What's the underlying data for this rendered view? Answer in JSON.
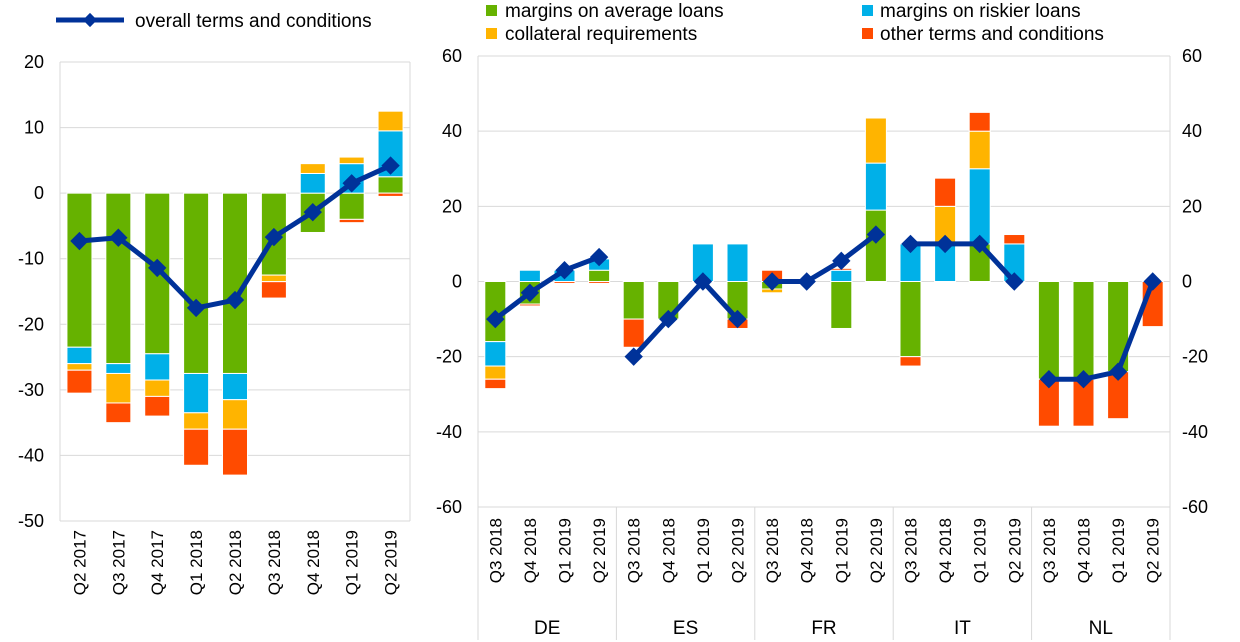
{
  "legend": {
    "overall": "overall terms and conditions",
    "margins_avg": "margins on average loans",
    "margins_risky": "margins on riskier loans",
    "collateral": "collateral requirements",
    "other": "other terms and conditions"
  },
  "colors": {
    "margins_avg": "#66b200",
    "margins_risky": "#00b0e8",
    "collateral": "#ffb400",
    "other": "#ff4b00",
    "line": "#003299",
    "grid": "#d9d9d9"
  },
  "chart_data": [
    {
      "type": "bar",
      "stacked": true,
      "overlay": "line",
      "categories": [
        "Q2 2017",
        "Q3 2017",
        "Q4 2017",
        "Q1 2018",
        "Q2 2018",
        "Q3 2018",
        "Q4 2018",
        "Q1 2019",
        "Q2 2019"
      ],
      "ylim": [
        -50,
        20
      ],
      "yticks": [
        20,
        10,
        0,
        -10,
        -20,
        -30,
        -40,
        -50
      ],
      "grid": true,
      "legend_position": "top-left",
      "series": [
        {
          "key": "margins_avg",
          "name": "margins on average loans",
          "values": [
            -23.5,
            -26,
            -24.5,
            -27.5,
            -27.5,
            -12.5,
            -6,
            -4,
            2.5
          ]
        },
        {
          "key": "margins_risky",
          "name": "margins on riskier loans",
          "values": [
            -2.5,
            -1.5,
            -4,
            -6,
            -4,
            0,
            3,
            4.5,
            7
          ]
        },
        {
          "key": "collateral",
          "name": "collateral requirements",
          "values": [
            -1,
            -4.5,
            -2.5,
            -2.5,
            -4.5,
            -1,
            1.5,
            1,
            3
          ]
        },
        {
          "key": "other",
          "name": "other terms and conditions",
          "values": [
            -3.5,
            -3,
            -3,
            -5.5,
            -7,
            -2.5,
            0,
            -0.5,
            -0.5
          ]
        }
      ],
      "line": {
        "key": "overall",
        "name": "overall terms and conditions",
        "values": [
          -7.3,
          -6.8,
          -11.4,
          -17.5,
          -16.3,
          -6.7,
          -2.9,
          1.5,
          4.2
        ]
      }
    },
    {
      "type": "bar",
      "stacked": true,
      "overlay": "line",
      "groups": [
        "DE",
        "ES",
        "FR",
        "IT",
        "NL"
      ],
      "categories": [
        "Q3 2018",
        "Q4 2018",
        "Q1 2019",
        "Q2 2019"
      ],
      "ylim": [
        -60,
        60
      ],
      "yticks": [
        60,
        40,
        20,
        0,
        -20,
        -40,
        -60
      ],
      "secondary_yticks": [
        60,
        40,
        20,
        0,
        -20,
        -40,
        -60
      ],
      "grid": true,
      "legend_position": "top",
      "series": [
        {
          "key": "margins_avg",
          "name": "margins on average loans",
          "values": [
            [
              -16,
              -6,
              0,
              3
            ],
            [
              -10,
              -10,
              0,
              -10
            ],
            [
              -2,
              0,
              -12.5,
              19
            ],
            [
              -20,
              0,
              10,
              0
            ],
            [
              -26,
              -26,
              -24,
              0
            ]
          ]
        },
        {
          "key": "margins_risky",
          "name": "margins on riskier loans",
          "values": [
            [
              -6.5,
              3,
              3,
              3
            ],
            [
              0,
              0,
              10,
              10
            ],
            [
              0,
              0,
              3,
              12.5
            ],
            [
              10,
              10,
              20,
              10
            ],
            [
              0,
              0,
              0,
              0
            ]
          ]
        },
        {
          "key": "collateral",
          "name": "collateral requirements",
          "values": [
            [
              -3.5,
              0,
              0,
              0
            ],
            [
              0,
              0,
              0,
              0
            ],
            [
              -1,
              0,
              0,
              12
            ],
            [
              0,
              10,
              10,
              0
            ],
            [
              0,
              0,
              0,
              0
            ]
          ]
        },
        {
          "key": "other",
          "name": "other terms and conditions",
          "values": [
            [
              -2.5,
              -0.5,
              -0.5,
              -0.5
            ],
            [
              -7.5,
              0,
              0,
              -2.5
            ],
            [
              3,
              0,
              0.5,
              0
            ],
            [
              -2.5,
              7.5,
              5,
              2.5
            ],
            [
              -12.5,
              -12.5,
              -12.5,
              -12
            ]
          ]
        }
      ],
      "line": {
        "key": "overall",
        "name": "overall terms and conditions",
        "values": [
          [
            -10,
            -3,
            3,
            6.5
          ],
          [
            -20,
            -10,
            0,
            -10
          ],
          [
            0,
            0,
            5.5,
            12.5
          ],
          [
            10,
            10,
            10,
            0
          ],
          [
            -26,
            -26,
            -24,
            0
          ]
        ]
      }
    }
  ]
}
